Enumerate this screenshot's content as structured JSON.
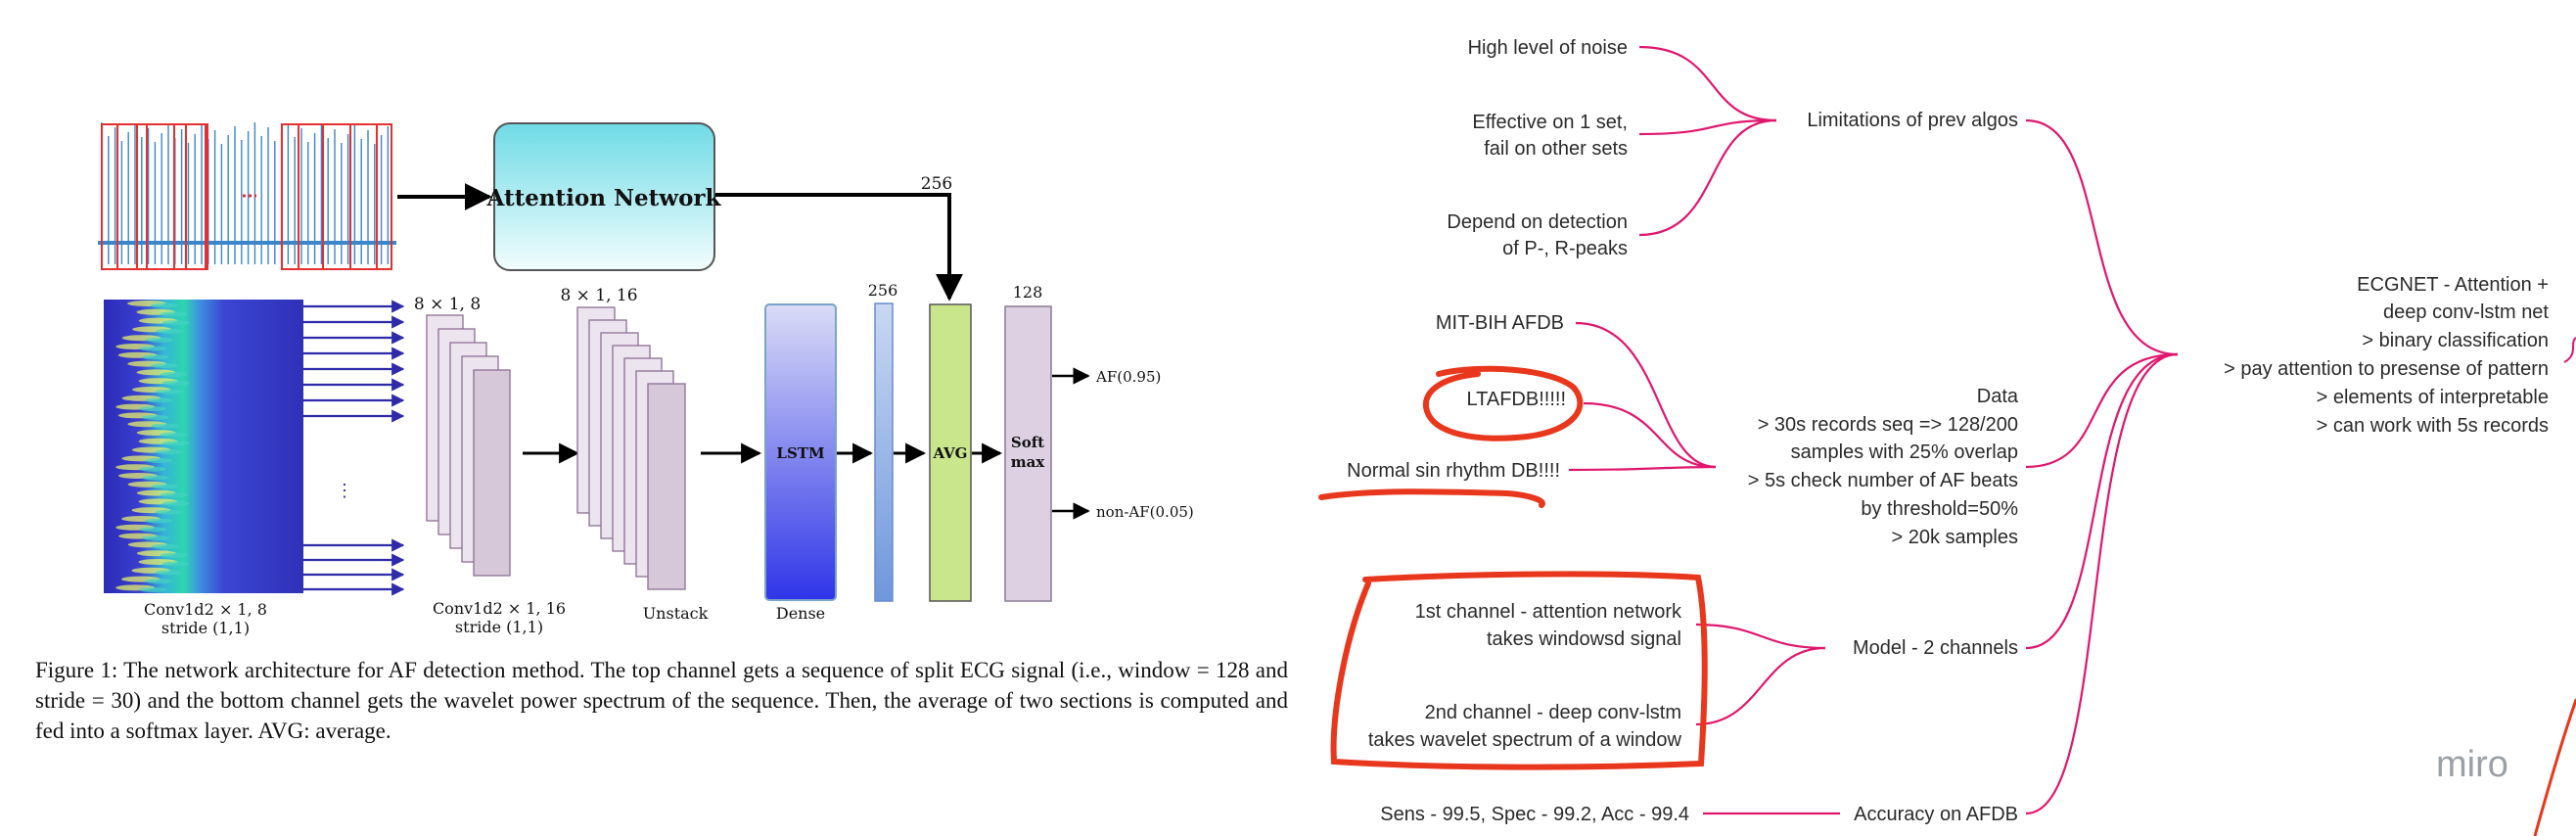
{
  "figure": {
    "attention_network_label": "Attention Network",
    "label_256_top": "256",
    "conv1_shape": "8 × 1, 8",
    "conv2_shape": "8 × 1, 16",
    "label_256_mid": "256",
    "label_128": "128",
    "lstm_label": "LSTM",
    "avg_label": "AVG",
    "softmax_label_1": "Soft",
    "softmax_label_2": "max",
    "output_af": "AF(0.95)",
    "output_non_af": "non-AF(0.05)",
    "spectrum_caption_1": "Conv1d2 × 1, 8",
    "spectrum_caption_2": "stride (1,1)",
    "conv2_caption_1": "Conv1d2 × 1, 16",
    "conv2_caption_2": "stride (1,1)",
    "unstack_caption": "Unstack",
    "dense_caption": "Dense",
    "ellipsis": "⋮",
    "caption": "Figure 1: The network architecture for AF detection method. The top channel gets a sequence of split ECG signal (i.e., window = 128 and stride = 30) and the bottom channel gets the wavelet power spectrum of the sequence. Then, the average of two sections is computed and fed into a softmax layer. AVG: average."
  },
  "mindmap": {
    "limit_1": "High level of noise",
    "limit_2a": "Effective on 1 set,",
    "limit_2b": "fail on other sets",
    "limit_3a": "Depend on detection",
    "limit_3b": "of P-, R-peaks",
    "limitations": "Limitations of prev algos",
    "db_1": "MIT-BIH AFDB",
    "db_2": "LTAFDB!!!!!",
    "db_3": "Normal sin rhythm DB!!!!",
    "data_lines": [
      "Data",
      "> 30s records seq => 128/200",
      "samples with 25% overlap",
      "> 5s check number of AF beats",
      "by threshold=50%",
      "> 20k samples"
    ],
    "ch_1a": "1st channel - attention network",
    "ch_1b": "takes windowsd signal",
    "ch_2a": "2nd channel - deep conv-lstm",
    "ch_2b": "takes wavelet spectrum of a window",
    "model": "Model - 2 channels",
    "sens": "Sens - 99.5, Spec - 99.2, Acc - 99.4",
    "accuracy": "Accuracy on AFDB",
    "root_lines": [
      "ECGNET - Attention +",
      "deep conv-lstm net",
      "> binary classification",
      "> pay attention to presense of pattern",
      "> elements of interpretable",
      "> can work with 5s records"
    ],
    "watermark": "miro"
  },
  "colors": {
    "connector": "#e0166e",
    "annotation": "#e8371c",
    "attention_top": "#7fe0ea",
    "avg_fill": "#c9e68c",
    "layer_fill": "#ddd0e2",
    "arrow_blue": "#2e2aa8"
  }
}
